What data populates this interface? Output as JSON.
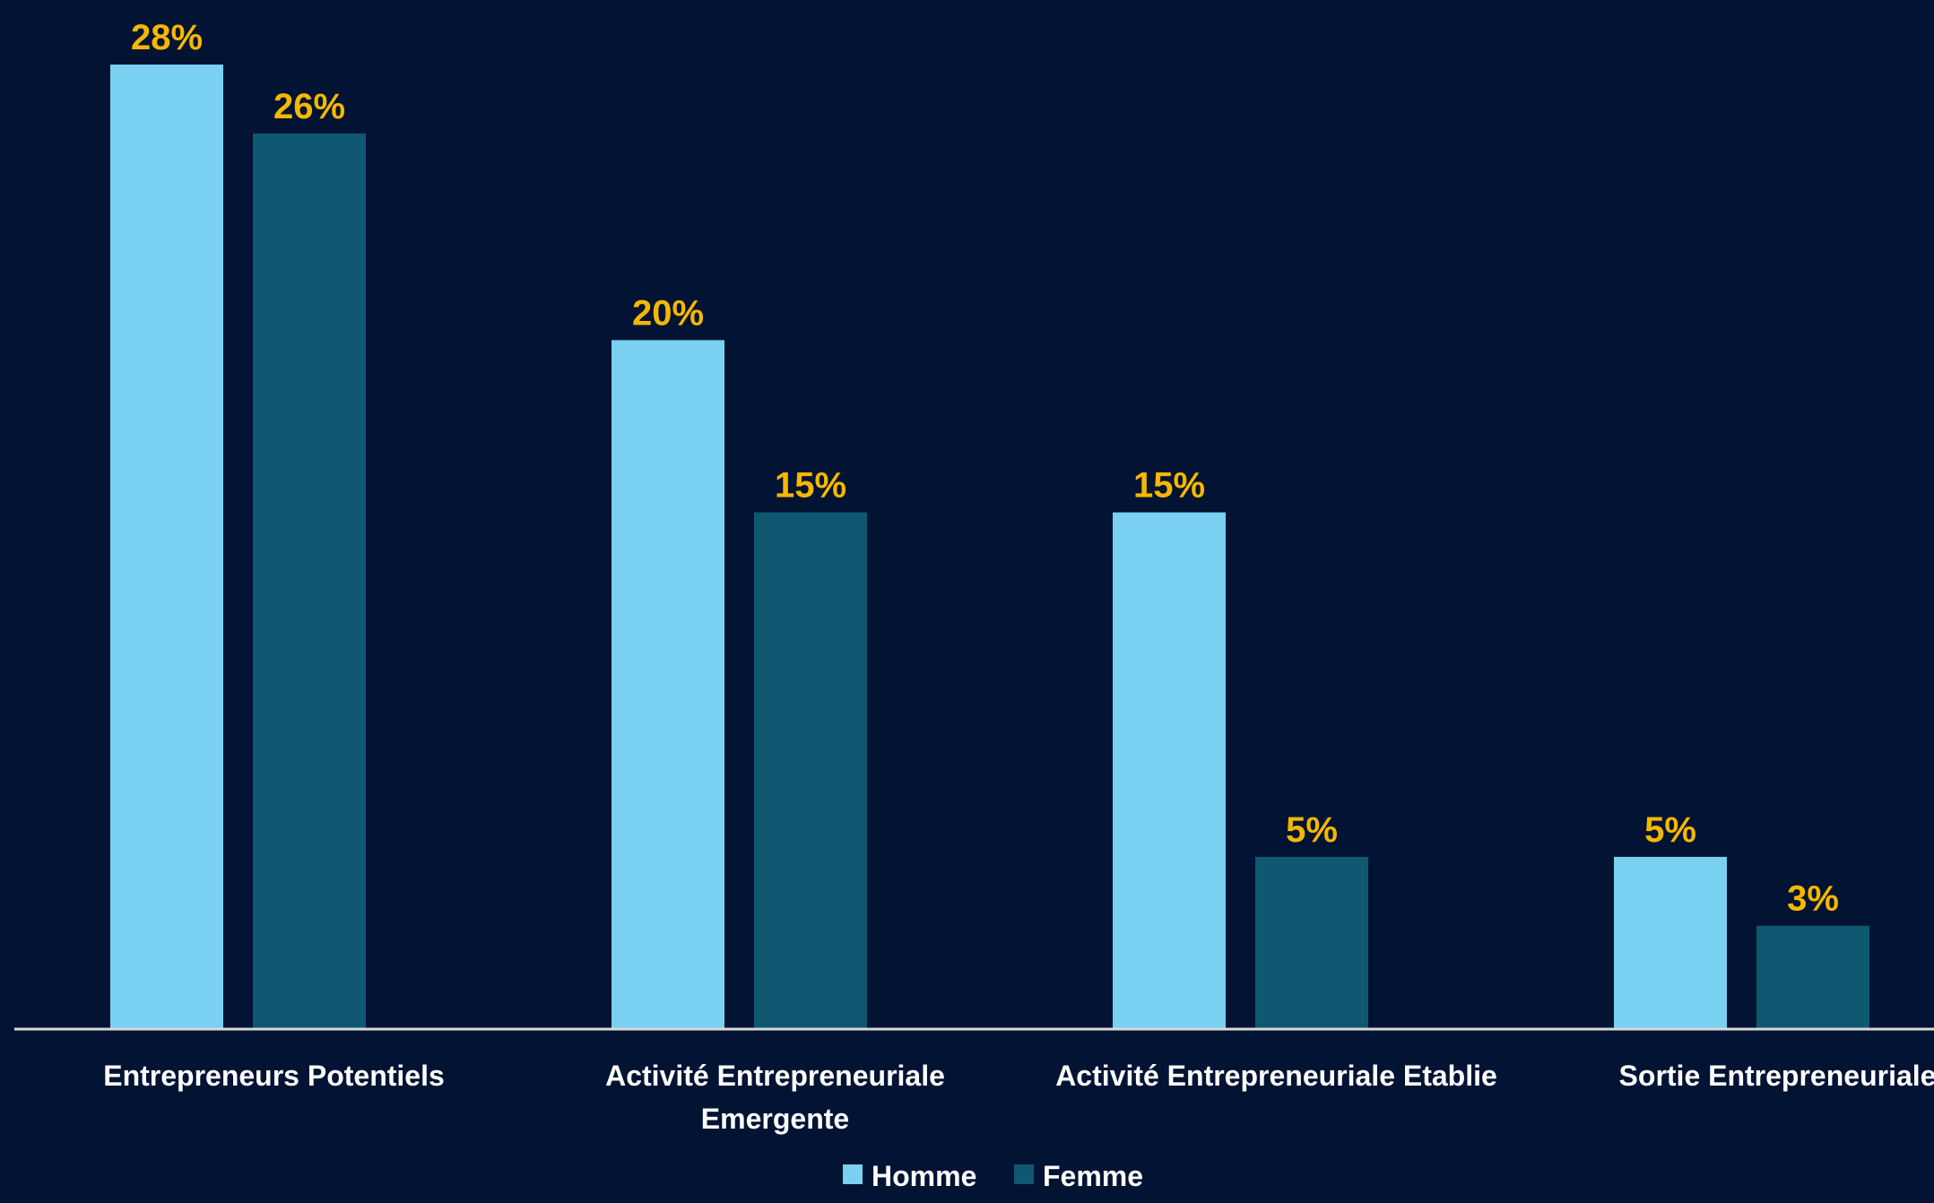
{
  "colors": {
    "background": "#021333",
    "homme": "#79D0F1",
    "femme": "#0F5872",
    "data_label": "#F5B800",
    "axis_text": "#FFFFFF",
    "axis_line": "#D9D9D9"
  },
  "chart_data": {
    "type": "bar",
    "title": "",
    "xlabel": "",
    "ylabel": "",
    "ylim": [
      0,
      28
    ],
    "grid": false,
    "legend_position": "bottom",
    "categories": [
      [
        "Entrepreneurs Potentiels"
      ],
      [
        "Activité Entrepreneuriale",
        "Emergente"
      ],
      [
        "Activité Entrepreneuriale Etablie"
      ],
      [
        "Sortie Entrepreneuriale"
      ]
    ],
    "series": [
      {
        "name": "Homme",
        "values": [
          28,
          20,
          15,
          5
        ],
        "labels": [
          "28%",
          "20%",
          "15%",
          "5%"
        ]
      },
      {
        "name": "Femme",
        "values": [
          26,
          15,
          5,
          3
        ],
        "labels": [
          "26%",
          "15%",
          "5%",
          "3%"
        ]
      }
    ]
  }
}
